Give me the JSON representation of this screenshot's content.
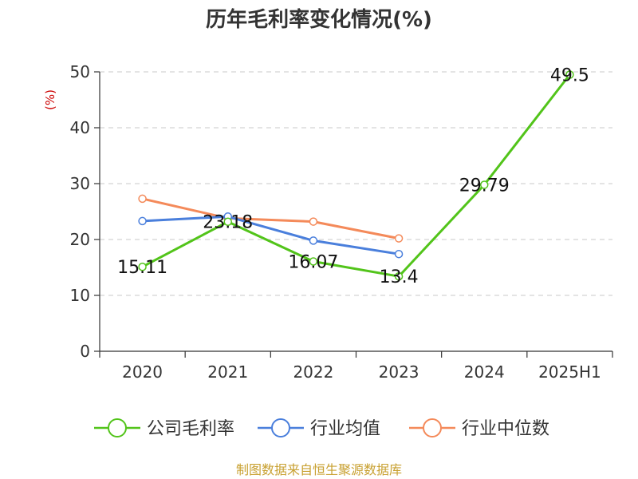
{
  "chart_data": {
    "type": "line",
    "title": "历年毛利率变化情况(%)",
    "ylabel": "(%)",
    "categories": [
      "2020",
      "2021",
      "2022",
      "2023",
      "2024",
      "2025H1"
    ],
    "ylim": [
      0,
      50
    ],
    "yticks": [
      0,
      10,
      20,
      30,
      40,
      50
    ],
    "grid": true,
    "legend_position": "bottom",
    "series": [
      {
        "name": "公司毛利率",
        "color": "#52c41a",
        "values": [
          15.11,
          23.18,
          16.07,
          13.4,
          29.79,
          49.5
        ],
        "labels": [
          "15.11",
          "23.18",
          "16.07",
          "13.4",
          "29.79",
          "49.5"
        ]
      },
      {
        "name": "行业均值",
        "color": "#4a7fdc",
        "values": [
          23.3,
          24.1,
          19.8,
          17.4,
          null,
          null
        ]
      },
      {
        "name": "行业中位数",
        "color": "#f48a5a",
        "values": [
          27.3,
          23.8,
          23.2,
          20.2,
          null,
          null
        ]
      }
    ]
  },
  "colors": {
    "ylabel": "#cc0000",
    "source": "#c8a030",
    "grid": "#c8c8c8"
  },
  "source": "制图数据来自恒生聚源数据库"
}
